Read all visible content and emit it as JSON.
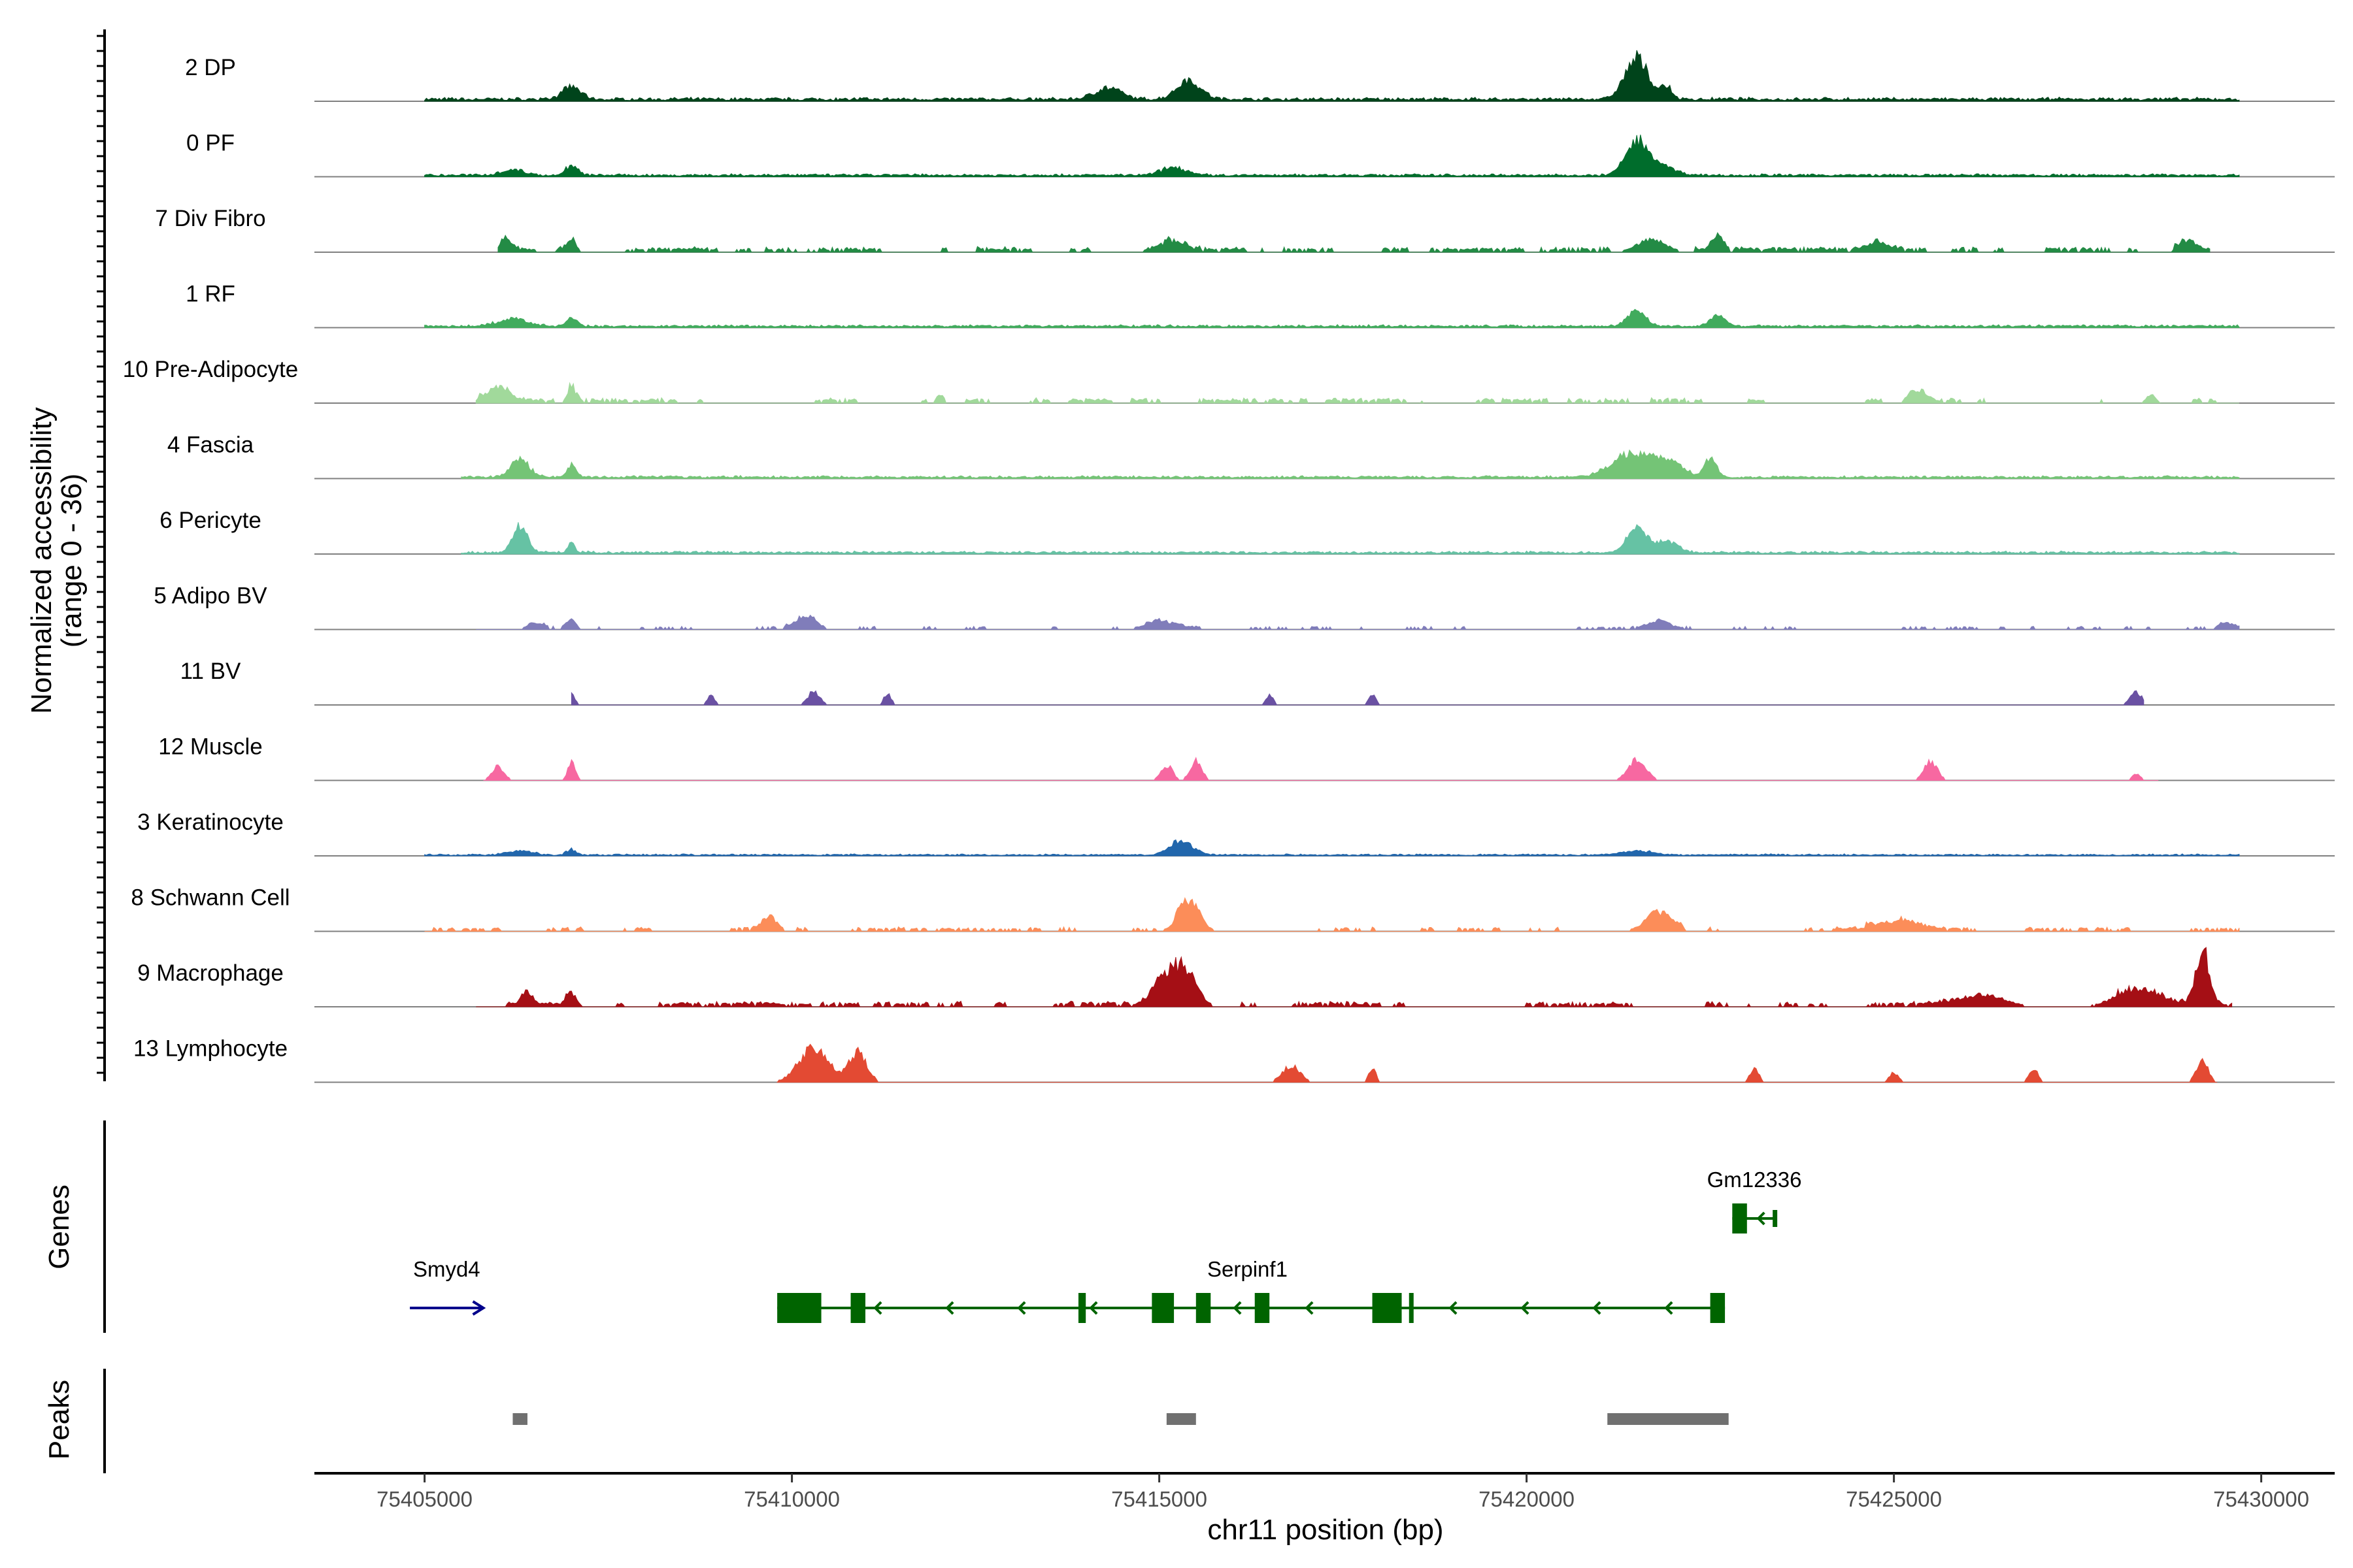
{
  "chart_data": {
    "type": "coverage-track",
    "ylabel_line1": "Normalized accessibility",
    "ylabel_line2": "(range 0 - 36)",
    "y_range": [
      0,
      36
    ],
    "xlabel": "chr11 position (bp)",
    "x_range": [
      75403500,
      75431000
    ],
    "x_ticks": [
      75405000,
      75410000,
      75415000,
      75420000,
      75425000,
      75430000
    ],
    "x_tick_labels": [
      "75405000",
      "75410000",
      "75415000",
      "75420000",
      "75425000",
      "75430000"
    ],
    "tracks": [
      {
        "name": "2 DP",
        "color": "#00441b",
        "peaks": [
          [
            75407000,
            0.18,
            120
          ],
          [
            75414300,
            0.16,
            180
          ],
          [
            75415400,
            0.28,
            160
          ],
          [
            75421500,
            0.58,
            160
          ],
          [
            75421900,
            0.16,
            80
          ]
        ],
        "noise": 0.04,
        "fill": "dense",
        "from": 75405000,
        "to": 75429700
      },
      {
        "name": "0 PF",
        "color": "#006d2c",
        "peaks": [
          [
            75406200,
            0.08,
            160
          ],
          [
            75407000,
            0.14,
            80
          ],
          [
            75415200,
            0.12,
            160
          ],
          [
            75421500,
            0.46,
            150
          ],
          [
            75421800,
            0.14,
            200
          ]
        ],
        "noise": 0.03,
        "fill": "dense",
        "from": 75405000,
        "to": 75429700
      },
      {
        "name": "7 Div Fibro",
        "color": "#238b45",
        "peaks": [
          [
            75406100,
            0.16,
            80
          ],
          [
            75407000,
            0.2,
            60
          ],
          [
            75415200,
            0.14,
            160
          ],
          [
            75421700,
            0.18,
            200
          ],
          [
            75422600,
            0.18,
            80
          ],
          [
            75424800,
            0.14,
            140
          ],
          [
            75429000,
            0.14,
            120
          ]
        ],
        "noise": 0.05,
        "fill": "patchy",
        "from": 75406000,
        "to": 75429300
      },
      {
        "name": "1 RF",
        "color": "#41ab5d",
        "peaks": [
          [
            75406200,
            0.1,
            200
          ],
          [
            75407000,
            0.12,
            70
          ],
          [
            75421500,
            0.22,
            120
          ],
          [
            75422600,
            0.16,
            100
          ]
        ],
        "noise": 0.03,
        "fill": "dense",
        "from": 75405000,
        "to": 75429700
      },
      {
        "name": "10 Pre-Adipocyte",
        "color": "#a1d99b",
        "peaks": [
          [
            75406000,
            0.2,
            160
          ],
          [
            75407000,
            0.2,
            60
          ],
          [
            75412000,
            0.12,
            40
          ],
          [
            75425300,
            0.2,
            100
          ],
          [
            75428500,
            0.12,
            60
          ]
        ],
        "noise": 0.05,
        "fill": "patchy",
        "from": 75405700,
        "to": 75429700
      },
      {
        "name": "4 Fascia",
        "color": "#74c476",
        "peaks": [
          [
            75406300,
            0.26,
            120
          ],
          [
            75407000,
            0.18,
            60
          ],
          [
            75421400,
            0.32,
            250
          ],
          [
            75421900,
            0.26,
            200
          ],
          [
            75422500,
            0.28,
            80
          ]
        ],
        "noise": 0.03,
        "fill": "dense",
        "from": 75405500,
        "to": 75429700
      },
      {
        "name": "6 Pericyte",
        "color": "#66c2a4",
        "peaks": [
          [
            75406300,
            0.38,
            100
          ],
          [
            75407000,
            0.14,
            50
          ],
          [
            75421500,
            0.34,
            140
          ],
          [
            75421900,
            0.16,
            150
          ]
        ],
        "noise": 0.03,
        "fill": "dense",
        "from": 75405500,
        "to": 75429700
      },
      {
        "name": "5 Adipo BV",
        "color": "#807dba",
        "peaks": [
          [
            75406500,
            0.1,
            100
          ],
          [
            75407000,
            0.14,
            60
          ],
          [
            75410200,
            0.16,
            150
          ],
          [
            75415000,
            0.12,
            200
          ],
          [
            75421800,
            0.12,
            120
          ],
          [
            75429500,
            0.08,
            100
          ]
        ],
        "noise": 0.03,
        "fill": "patchy",
        "from": 75405700,
        "to": 75429700
      },
      {
        "name": "11 BV",
        "color": "#6a51a3",
        "peaks": [
          [
            75407000,
            0.16,
            50
          ],
          [
            75408900,
            0.14,
            50
          ],
          [
            75410300,
            0.2,
            80
          ],
          [
            75411300,
            0.16,
            50
          ],
          [
            75416500,
            0.14,
            50
          ],
          [
            75417900,
            0.14,
            50
          ],
          [
            75428300,
            0.18,
            80
          ]
        ],
        "noise": 0.0,
        "fill": "sparse",
        "from": 75407000,
        "to": 75428400
      },
      {
        "name": "12 Muscle",
        "color": "#f768a1",
        "peaks": [
          [
            75406000,
            0.2,
            80
          ],
          [
            75407000,
            0.28,
            50
          ],
          [
            75415100,
            0.22,
            80
          ],
          [
            75415500,
            0.28,
            80
          ],
          [
            75421500,
            0.3,
            120
          ],
          [
            75425500,
            0.28,
            90
          ],
          [
            75428300,
            0.1,
            60
          ]
        ],
        "noise": 0.0,
        "fill": "sparse",
        "from": 75405800,
        "to": 75428600
      },
      {
        "name": "3 Keratinocyte",
        "color": "#2166ac",
        "peaks": [
          [
            75406300,
            0.06,
            160
          ],
          [
            75407000,
            0.08,
            60
          ],
          [
            75415300,
            0.2,
            150
          ],
          [
            75421500,
            0.06,
            200
          ]
        ],
        "noise": 0.02,
        "fill": "dense",
        "from": 75405000,
        "to": 75429700
      },
      {
        "name": "8 Schwann Cell",
        "color": "#fc8d59",
        "peaks": [
          [
            75409700,
            0.18,
            110
          ],
          [
            75415400,
            0.46,
            140
          ],
          [
            75421800,
            0.28,
            180
          ],
          [
            75425000,
            0.14,
            300
          ]
        ],
        "noise": 0.04,
        "fill": "patchy",
        "from": 75405000,
        "to": 75429700
      },
      {
        "name": "9 Macrophage",
        "color": "#a50f15",
        "peaks": [
          [
            75406400,
            0.16,
            80
          ],
          [
            75407000,
            0.18,
            70
          ],
          [
            75415300,
            0.58,
            180
          ],
          [
            75415000,
            0.24,
            120
          ],
          [
            75426200,
            0.18,
            300
          ],
          [
            75428300,
            0.22,
            300
          ],
          [
            75429200,
            0.8,
            90
          ]
        ],
        "noise": 0.05,
        "fill": "patchy",
        "from": 75405700,
        "to": 75429600
      },
      {
        "name": "13 Lymphocyte",
        "color": "#e34a33",
        "peaks": [
          [
            75410300,
            0.5,
            200
          ],
          [
            75410900,
            0.42,
            120
          ],
          [
            75416800,
            0.24,
            120
          ],
          [
            75417900,
            0.2,
            50
          ],
          [
            75423100,
            0.2,
            60
          ],
          [
            75425000,
            0.14,
            60
          ],
          [
            75426900,
            0.2,
            60
          ],
          [
            75429200,
            0.3,
            80
          ]
        ],
        "noise": 0.0,
        "fill": "sparse",
        "from": 75409800,
        "to": 75429400
      }
    ],
    "genes_title": "Genes",
    "genes": [
      {
        "name": "Smyd4",
        "color": "#00008b",
        "start": 75404800,
        "end": 75405800,
        "strand": "+",
        "row": 2,
        "exons": []
      },
      {
        "name": "Serpinf1",
        "color": "#006400",
        "start": 75409800,
        "end": 75422700,
        "strand": "-",
        "row": 2,
        "exons": [
          [
            75409800,
            75410400,
            "wide"
          ],
          [
            75410800,
            75411000,
            "wide"
          ],
          [
            75413900,
            75414000,
            "wide"
          ],
          [
            75414900,
            75415200,
            "wide"
          ],
          [
            75415500,
            75415700,
            "wide"
          ],
          [
            75416300,
            75416500,
            "wide"
          ],
          [
            75417900,
            75418300,
            "wide"
          ],
          [
            75418400,
            75418450,
            "wide"
          ],
          [
            75422500,
            75422700,
            "wide"
          ]
        ]
      },
      {
        "name": "Gm12336",
        "color": "#006400",
        "start": 75422800,
        "end": 75423400,
        "strand": "-",
        "row": 1,
        "exons": [
          [
            75422800,
            75423000,
            "wide"
          ],
          [
            75423350,
            75423400,
            "thin"
          ]
        ]
      }
    ],
    "peaks_title": "Peaks",
    "peak_regions": [
      [
        75406200,
        75406400
      ],
      [
        75415100,
        75415500
      ],
      [
        75421100,
        75422750
      ]
    ],
    "peak_color": "#707070"
  }
}
